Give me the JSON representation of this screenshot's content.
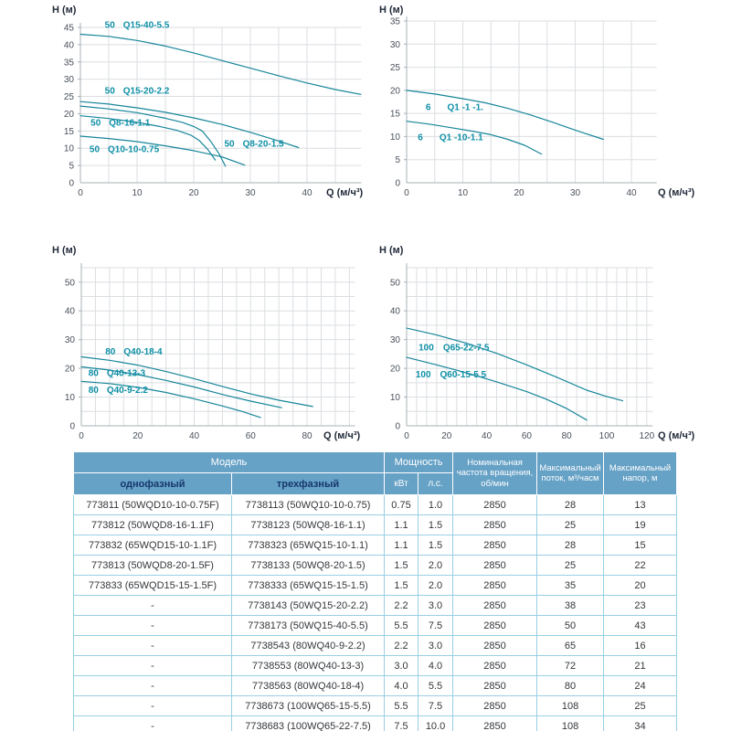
{
  "chart_data": [
    {
      "type": "line",
      "title": "",
      "xlabel": "Q (м/ч³)",
      "ylabel": "H (м)",
      "xlim": [
        0,
        49.6
      ],
      "ylim": [
        0,
        45
      ],
      "x_ticks": [
        0,
        10,
        20,
        30,
        40
      ],
      "y_label_step": 5,
      "grid": "on",
      "series": [
        {
          "name": "50 Q15-40-5.5",
          "label_parts": [
            "50",
            "Q15-40-5.5"
          ],
          "label_q": 4.3,
          "label_h": 44.8,
          "gap": 9,
          "points": [
            [
              0,
              43
            ],
            [
              5,
              42.4
            ],
            [
              10,
              41.2
            ],
            [
              15,
              39.6
            ],
            [
              20,
              37.6
            ],
            [
              25,
              35.4
            ],
            [
              30,
              33.2
            ],
            [
              35,
              31
            ],
            [
              40,
              28.9
            ],
            [
              45,
              27
            ],
            [
              49.5,
              25.6
            ]
          ]
        },
        {
          "name": "50 Q15-20-2.2",
          "label_parts": [
            "50",
            "Q15-20-2.2"
          ],
          "label_q": 4.3,
          "label_h": 25.8,
          "gap": 9,
          "points": [
            [
              0,
              23.5
            ],
            [
              5,
              22.8
            ],
            [
              10,
              21.7
            ],
            [
              15,
              20.4
            ],
            [
              20,
              18.8
            ],
            [
              25,
              16.9
            ],
            [
              30,
              14.6
            ],
            [
              35,
              12.1
            ],
            [
              38.5,
              10.2
            ]
          ]
        },
        {
          "name": "50 Q8-20-1.5",
          "label_parts": [
            "50",
            "Q8-20-1.5"
          ],
          "label_q": 25.4,
          "label_h": 10.4,
          "gap": 9,
          "points": [
            [
              0,
              22.2
            ],
            [
              5,
              21.4
            ],
            [
              10,
              20.3
            ],
            [
              15,
              18.7
            ],
            [
              18,
              17.5
            ],
            [
              20,
              16.3
            ],
            [
              21.5,
              15
            ],
            [
              23,
              12
            ],
            [
              24.5,
              8.3
            ],
            [
              25.6,
              4.8
            ]
          ]
        },
        {
          "name": "50 Q8-16-1.1",
          "label_parts": [
            "50",
            "Q8-16-1.1"
          ],
          "label_q": 1.8,
          "label_h": 16.6,
          "gap": 9,
          "points": [
            [
              0,
              19.4
            ],
            [
              5,
              18.6
            ],
            [
              10,
              17.5
            ],
            [
              14,
              16.3
            ],
            [
              17,
              15.2
            ],
            [
              19.5,
              13.8
            ],
            [
              21,
              12.2
            ],
            [
              22.5,
              9.6
            ],
            [
              23.8,
              6.6
            ]
          ]
        },
        {
          "name": "50 Q10-10-0.75",
          "label_parts": [
            "50",
            "Q10-10-0.75"
          ],
          "label_q": 1.6,
          "label_h": 8.9,
          "gap": 9,
          "points": [
            [
              0,
              13.5
            ],
            [
              5,
              12.8
            ],
            [
              10,
              11.9
            ],
            [
              15,
              10.7
            ],
            [
              20,
              9.3
            ],
            [
              25,
              7.5
            ],
            [
              29,
              5.1
            ]
          ]
        }
      ]
    },
    {
      "type": "line",
      "title": "",
      "xlabel": "Q (м/ч³)",
      "ylabel": "H (м)",
      "xlim": [
        0,
        44.5
      ],
      "ylim": [
        0,
        35
      ],
      "x_ticks": [
        0,
        10,
        20,
        30,
        40
      ],
      "y_label_step": 5,
      "grid": "on",
      "series": [
        {
          "name": "6 Q1 -1 -1.",
          "label_parts": [
            "6",
            "Q1 -1 -1."
          ],
          "label_q": 3.4,
          "label_h": 15.7,
          "gap": 18,
          "points": [
            [
              0,
              20
            ],
            [
              5,
              19.2
            ],
            [
              10,
              18.2
            ],
            [
              14,
              17.3
            ],
            [
              18,
              16.1
            ],
            [
              22,
              14.7
            ],
            [
              26,
              13.1
            ],
            [
              30,
              11.4
            ],
            [
              35,
              9.4
            ]
          ]
        },
        {
          "name": "6 Q1 -10-1.1",
          "label_parts": [
            "6",
            "Q1 -10-1.1"
          ],
          "label_q": 2,
          "label_h": 9.2,
          "gap": 18,
          "points": [
            [
              0,
              13.3
            ],
            [
              4,
              12.7
            ],
            [
              8,
              11.9
            ],
            [
              12,
              11.1
            ],
            [
              15,
              10.4
            ],
            [
              18,
              9.4
            ],
            [
              21,
              8.1
            ],
            [
              24,
              6.2
            ]
          ]
        }
      ]
    },
    {
      "type": "line",
      "title": "",
      "xlabel": "Q (м/ч³)",
      "ylabel": "H (м)",
      "xlim": [
        0,
        97
      ],
      "ylim": [
        0,
        55
      ],
      "x_ticks": [
        0,
        20,
        40,
        60,
        80
      ],
      "y_label_step": 10,
      "grid": "on",
      "series": [
        {
          "name": "80 Q40-18-4",
          "label_parts": [
            "80",
            "Q40-18-4"
          ],
          "label_q": 8.5,
          "label_h": 24.8,
          "gap": 9,
          "points": [
            [
              0,
              24
            ],
            [
              10,
              22.8
            ],
            [
              20,
              21.1
            ],
            [
              30,
              18.9
            ],
            [
              40,
              16.4
            ],
            [
              50,
              13.7
            ],
            [
              60,
              11.1
            ],
            [
              70,
              8.9
            ],
            [
              82,
              6.7
            ]
          ]
        },
        {
          "name": "80 Q40-13-3",
          "label_parts": [
            "80",
            "Q40-13-3"
          ],
          "label_q": 2.5,
          "label_h": 17.4,
          "gap": 9,
          "points": [
            [
              0,
              20.5
            ],
            [
              10,
              19.4
            ],
            [
              20,
              17.8
            ],
            [
              30,
              15.8
            ],
            [
              40,
              13.5
            ],
            [
              50,
              10.9
            ],
            [
              60,
              8.6
            ],
            [
              71,
              6.3
            ]
          ]
        },
        {
          "name": "80 Q40-9-2.2",
          "label_parts": [
            "80",
            "Q40-9-2.2"
          ],
          "label_q": 2.5,
          "label_h": 11.5,
          "gap": 9,
          "points": [
            [
              0,
              15.5
            ],
            [
              10,
              14.7
            ],
            [
              20,
              13.4
            ],
            [
              30,
              11.6
            ],
            [
              40,
              9.4
            ],
            [
              50,
              6.9
            ],
            [
              57,
              5
            ],
            [
              63.5,
              2.9
            ]
          ]
        }
      ]
    },
    {
      "type": "line",
      "title": "",
      "xlabel": "Q (м/ч³)",
      "ylabel": "H (м)",
      "xlim": [
        0,
        123
      ],
      "ylim": [
        0,
        55
      ],
      "x_ticks": [
        0,
        20,
        40,
        60,
        80,
        100,
        120
      ],
      "y_label_step": 10,
      "grid": "on",
      "series": [
        {
          "name": "100 Q65-22-7.5",
          "label_parts": [
            "100",
            "Q65-22-7.5"
          ],
          "label_q": 6,
          "label_h": 26.3,
          "gap": 10,
          "points": [
            [
              0,
              34
            ],
            [
              15,
              31.6
            ],
            [
              30,
              28.7
            ],
            [
              45,
              25.2
            ],
            [
              60,
              21.2
            ],
            [
              75,
              16.9
            ],
            [
              90,
              12.4
            ],
            [
              100,
              10.2
            ],
            [
              108,
              8.7
            ]
          ]
        },
        {
          "name": "100 Q60-15-5.5",
          "label_parts": [
            "100",
            "Q60-15-5.5"
          ],
          "label_q": 4.5,
          "label_h": 16.8,
          "gap": 10,
          "points": [
            [
              0,
              23.8
            ],
            [
              15,
              21.2
            ],
            [
              30,
              18.4
            ],
            [
              45,
              15.3
            ],
            [
              60,
              11.9
            ],
            [
              70,
              9.2
            ],
            [
              80,
              6
            ],
            [
              90,
              2
            ]
          ]
        }
      ]
    }
  ],
  "table": {
    "header": {
      "model": "Модель",
      "single_phase": "однофазный",
      "three_phase": "трехфазный",
      "power": "Мощность",
      "kw": "кВт",
      "hp": "л.с.",
      "speed": "Номинальная частота вращения, об/мин",
      "max_flow": "Максимальный поток, м³/часм",
      "max_head": "Максимальный напор, м"
    },
    "rows": [
      [
        "773811 (50WQD10-10-0.75F)",
        "7738113 (50WQ10-10-0.75)",
        "0.75",
        "1.0",
        "2850",
        "28",
        "13"
      ],
      [
        "773812 (50WQD8-16-1.1F)",
        "7738123 (50WQ8-16-1.1)",
        "1.1",
        "1.5",
        "2850",
        "25",
        "19"
      ],
      [
        "773832 (65WQD15-10-1.1F)",
        "7738323 (65WQ15-10-1.1)",
        "1.1",
        "1.5",
        "2850",
        "28",
        "15"
      ],
      [
        "773813 (50WQD8-20-1.5F)",
        "7738133 (50WQ8-20-1.5)",
        "1.5",
        "2.0",
        "2850",
        "25",
        "22"
      ],
      [
        "773833 (65WQD15-15-1.5F)",
        "7738333 (65WQ15-15-1.5)",
        "1.5",
        "2.0",
        "2850",
        "35",
        "20"
      ],
      [
        "-",
        "7738143 (50WQ15-20-2.2)",
        "2.2",
        "3.0",
        "2850",
        "38",
        "23"
      ],
      [
        "-",
        "7738173 (50WQ15-40-5.5)",
        "5.5",
        "7.5",
        "2850",
        "50",
        "43"
      ],
      [
        "-",
        "7738543 (80WQ40-9-2.2)",
        "2.2",
        "3.0",
        "2850",
        "65",
        "16"
      ],
      [
        "-",
        "7738553 (80WQ40-13-3)",
        "3.0",
        "4.0",
        "2850",
        "72",
        "21"
      ],
      [
        "-",
        "7738563 (80WQ40-18-4)",
        "4.0",
        "5.5",
        "2850",
        "80",
        "24"
      ],
      [
        "-",
        "7738673 (100WQ65-15-5.5)",
        "5.5",
        "7.5",
        "2850",
        "108",
        "25"
      ],
      [
        "-",
        "7738683 (100WQ65-22-7.5)",
        "7.5",
        "10.0",
        "2850",
        "108",
        "34"
      ]
    ]
  },
  "colors": {
    "curve": "#17869A",
    "curve_label": "#0E8FA6",
    "grid": "#DBDEE1",
    "axis": "#A9B0B6",
    "header_bg": "#66A1C6",
    "header_sub_text": "#17386B",
    "cell_border": "#98CFE2"
  }
}
